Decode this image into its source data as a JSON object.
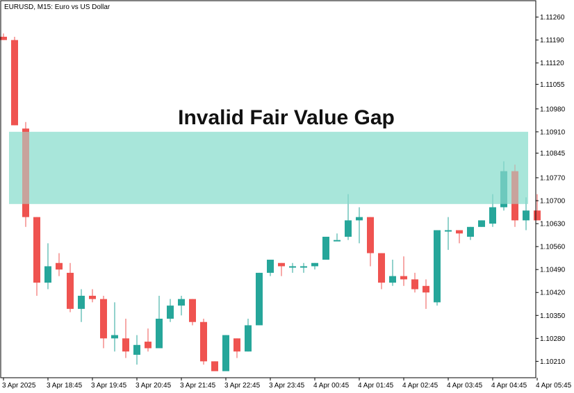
{
  "header": {
    "title": "EURUSD, M15:  Euro vs US Dollar"
  },
  "annotation": {
    "label": "Invalid Fair Value Gap"
  },
  "colors": {
    "bull": "#26a69a",
    "bear": "#ef5350",
    "zone": "#a8e6da",
    "frame": "#000000"
  },
  "chart_data": {
    "type": "candlestick",
    "symbol": "EURUSD",
    "timeframe": "M15",
    "ylim": [
      1.1016,
      1.1131
    ],
    "y_ticks": [
      1.1126,
      1.1119,
      1.1112,
      1.11055,
      1.1098,
      1.1091,
      1.10845,
      1.1077,
      1.107,
      1.1063,
      1.1056,
      1.1049,
      1.1042,
      1.1035,
      1.1028,
      1.1021
    ],
    "y_tick_labels": [
      "1.11260",
      "1.11190",
      "1.11120",
      "1.11055",
      "1.10980",
      "1.10910",
      "1.10845",
      "1.10770",
      "1.10700",
      "1.10630",
      "1.10560",
      "1.10490",
      "1.10420",
      "1.10350",
      "1.10280",
      "1.10210"
    ],
    "x_ticks": [
      {
        "index": 0,
        "label": "3 Apr 2025"
      },
      {
        "index": 4,
        "label": "3 Apr 18:45"
      },
      {
        "index": 8,
        "label": "3 Apr 19:45"
      },
      {
        "index": 12,
        "label": "3 Apr 20:45"
      },
      {
        "index": 16,
        "label": "3 Apr 21:45"
      },
      {
        "index": 20,
        "label": "3 Apr 22:45"
      },
      {
        "index": 24,
        "label": "3 Apr 23:45"
      },
      {
        "index": 28,
        "label": "4 Apr 00:45"
      },
      {
        "index": 32,
        "label": "4 Apr 01:45"
      },
      {
        "index": 36,
        "label": "4 Apr 02:45"
      },
      {
        "index": 40,
        "label": "4 Apr 03:45"
      },
      {
        "index": 44,
        "label": "4 Apr 04:45"
      },
      {
        "index": 48,
        "label": "4 Apr 05:45"
      }
    ],
    "fvg_zone": {
      "from_index": 1,
      "to_index": 47,
      "top": 1.1091,
      "bottom": 1.1069,
      "label": "Invalid Fair Value Gap"
    },
    "candles": [
      {
        "o": 1.112,
        "h": 1.1121,
        "l": 1.1119,
        "c": 1.1119
      },
      {
        "o": 1.1119,
        "h": 1.112,
        "l": 1.1093,
        "c": 1.1093
      },
      {
        "o": 1.1092,
        "h": 1.1094,
        "l": 1.1062,
        "c": 1.1065
      },
      {
        "o": 1.1065,
        "h": 1.1065,
        "l": 1.1041,
        "c": 1.1045
      },
      {
        "o": 1.1045,
        "h": 1.1057,
        "l": 1.1043,
        "c": 1.105
      },
      {
        "o": 1.1051,
        "h": 1.1054,
        "l": 1.1047,
        "c": 1.1049
      },
      {
        "o": 1.1048,
        "h": 1.1051,
        "l": 1.1036,
        "c": 1.1037
      },
      {
        "o": 1.1037,
        "h": 1.1043,
        "l": 1.1033,
        "c": 1.1041
      },
      {
        "o": 1.1041,
        "h": 1.1043,
        "l": 1.1039,
        "c": 1.104
      },
      {
        "o": 1.104,
        "h": 1.1041,
        "l": 1.1025,
        "c": 1.1028
      },
      {
        "o": 1.1028,
        "h": 1.1039,
        "l": 1.1024,
        "c": 1.1029
      },
      {
        "o": 1.1028,
        "h": 1.1034,
        "l": 1.1022,
        "c": 1.1024
      },
      {
        "o": 1.1023,
        "h": 1.1029,
        "l": 1.102,
        "c": 1.1026
      },
      {
        "o": 1.1027,
        "h": 1.1031,
        "l": 1.1024,
        "c": 1.1025
      },
      {
        "o": 1.1025,
        "h": 1.1041,
        "l": 1.1025,
        "c": 1.1034
      },
      {
        "o": 1.1034,
        "h": 1.104,
        "l": 1.1033,
        "c": 1.1038
      },
      {
        "o": 1.1038,
        "h": 1.1041,
        "l": 1.1035,
        "c": 1.104
      },
      {
        "o": 1.104,
        "h": 1.104,
        "l": 1.1032,
        "c": 1.1033
      },
      {
        "o": 1.1033,
        "h": 1.1034,
        "l": 1.102,
        "c": 1.1021
      },
      {
        "o": 1.1021,
        "h": 1.1021,
        "l": 1.1018,
        "c": 1.1018
      },
      {
        "o": 1.1018,
        "h": 1.1029,
        "l": 1.1018,
        "c": 1.1029
      },
      {
        "o": 1.1028,
        "h": 1.1028,
        "l": 1.1022,
        "c": 1.1024
      },
      {
        "o": 1.1024,
        "h": 1.1034,
        "l": 1.1024,
        "c": 1.1032
      },
      {
        "o": 1.1032,
        "h": 1.1048,
        "l": 1.1032,
        "c": 1.1048
      },
      {
        "o": 1.1048,
        "h": 1.1052,
        "l": 1.1047,
        "c": 1.1052
      },
      {
        "o": 1.1051,
        "h": 1.1051,
        "l": 1.1047,
        "c": 1.105
      },
      {
        "o": 1.105,
        "h": 1.1051,
        "l": 1.1048,
        "c": 1.105
      },
      {
        "o": 1.105,
        "h": 1.1051,
        "l": 1.1048,
        "c": 1.105
      },
      {
        "o": 1.105,
        "h": 1.1051,
        "l": 1.1049,
        "c": 1.1051
      },
      {
        "o": 1.1052,
        "h": 1.1059,
        "l": 1.1052,
        "c": 1.1059
      },
      {
        "o": 1.1058,
        "h": 1.106,
        "l": 1.1058,
        "c": 1.1058
      },
      {
        "o": 1.1059,
        "h": 1.1072,
        "l": 1.1058,
        "c": 1.1064
      },
      {
        "o": 1.1064,
        "h": 1.1068,
        "l": 1.1057,
        "c": 1.1065
      },
      {
        "o": 1.1065,
        "h": 1.1065,
        "l": 1.105,
        "c": 1.1054
      },
      {
        "o": 1.1054,
        "h": 1.1054,
        "l": 1.1043,
        "c": 1.1045
      },
      {
        "o": 1.1045,
        "h": 1.1052,
        "l": 1.1044,
        "c": 1.1047
      },
      {
        "o": 1.1047,
        "h": 1.1053,
        "l": 1.1044,
        "c": 1.1046
      },
      {
        "o": 1.1046,
        "h": 1.1048,
        "l": 1.1042,
        "c": 1.1043
      },
      {
        "o": 1.1044,
        "h": 1.1046,
        "l": 1.1037,
        "c": 1.1042
      },
      {
        "o": 1.1039,
        "h": 1.1061,
        "l": 1.1038,
        "c": 1.1061
      },
      {
        "o": 1.1061,
        "h": 1.1065,
        "l": 1.1055,
        "c": 1.1061
      },
      {
        "o": 1.1061,
        "h": 1.1061,
        "l": 1.1057,
        "c": 1.106
      },
      {
        "o": 1.1059,
        "h": 1.1062,
        "l": 1.1058,
        "c": 1.1062
      },
      {
        "o": 1.1062,
        "h": 1.1064,
        "l": 1.1062,
        "c": 1.1064
      },
      {
        "o": 1.1063,
        "h": 1.1072,
        "l": 1.1062,
        "c": 1.1068
      },
      {
        "o": 1.1068,
        "h": 1.1082,
        "l": 1.1067,
        "c": 1.1079
      },
      {
        "o": 1.1079,
        "h": 1.1081,
        "l": 1.1062,
        "c": 1.1064
      },
      {
        "o": 1.1064,
        "h": 1.1071,
        "l": 1.1061,
        "c": 1.1067
      },
      {
        "o": 1.1067,
        "h": 1.1072,
        "l": 1.1064,
        "c": 1.1064
      }
    ]
  }
}
